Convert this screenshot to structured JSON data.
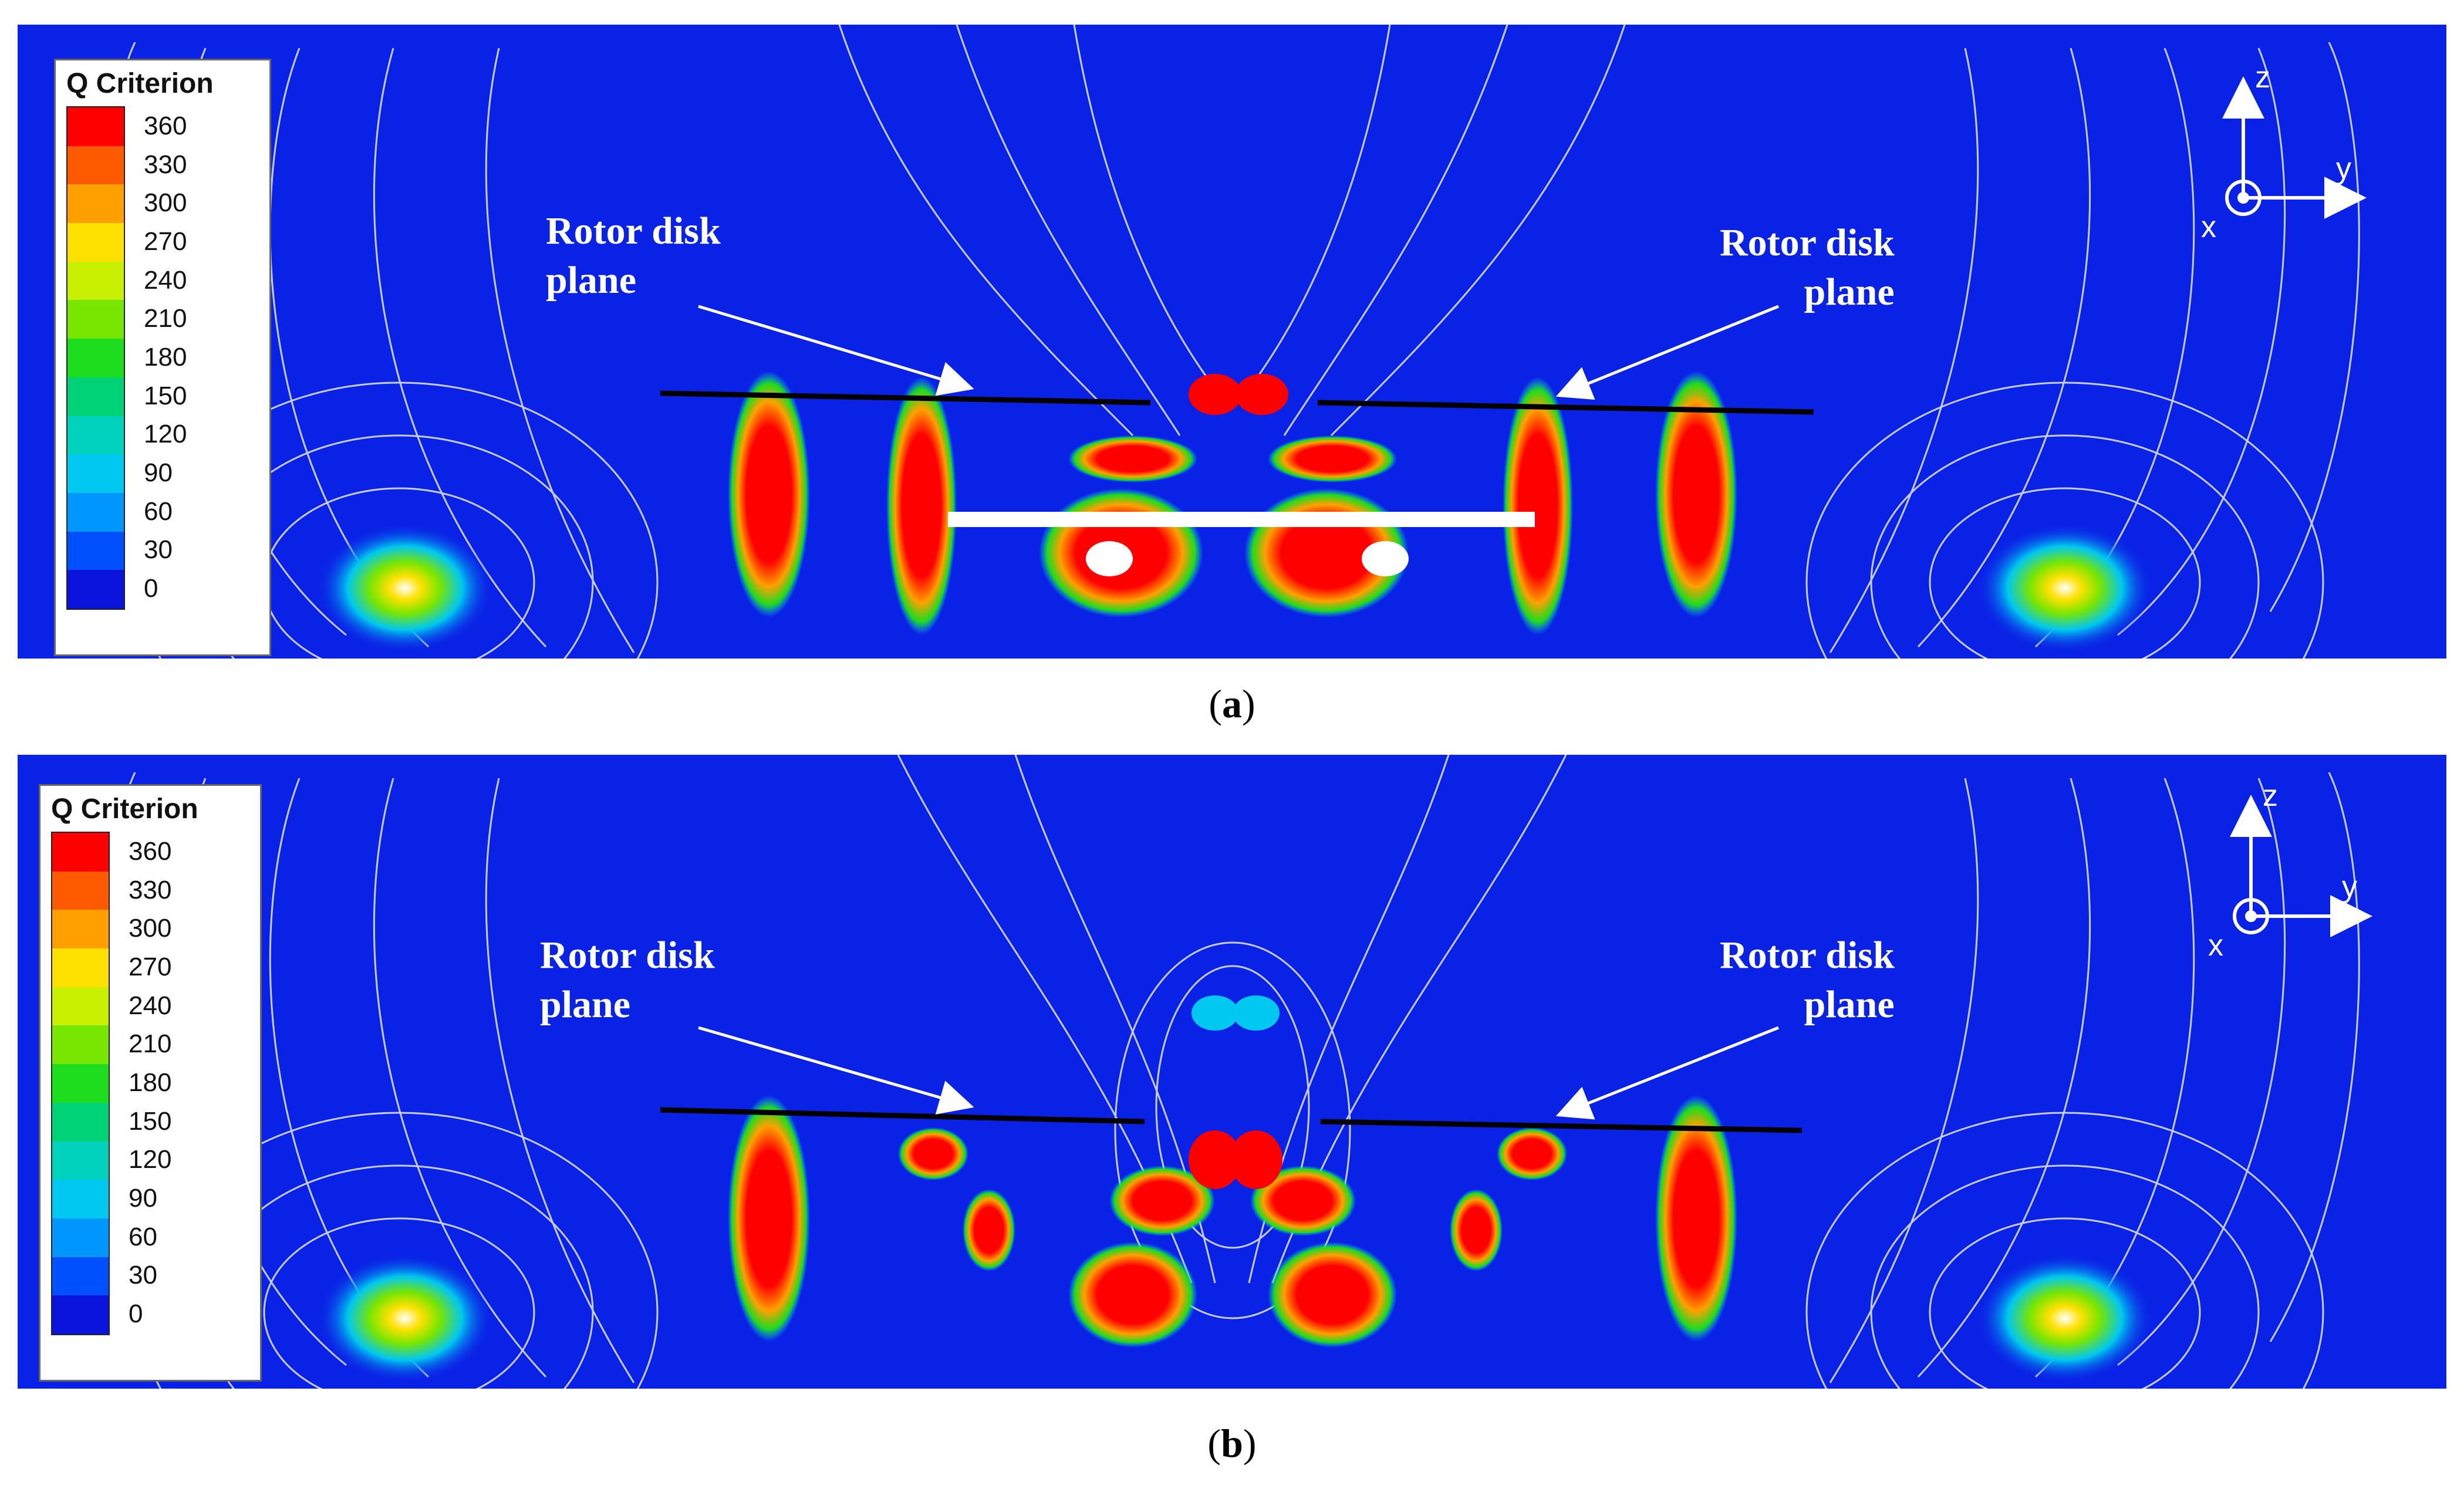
{
  "figure": {
    "panels": [
      {
        "id": "a",
        "caption_letter": "a",
        "legend": {
          "title": "Q Criterion",
          "levels": [
            {
              "label": "360",
              "color": "#ff0000"
            },
            {
              "label": "330",
              "color": "#ff5a00"
            },
            {
              "label": "300",
              "color": "#ffa000"
            },
            {
              "label": "270",
              "color": "#ffe100"
            },
            {
              "label": "240",
              "color": "#c8f000"
            },
            {
              "label": "210",
              "color": "#78e600"
            },
            {
              "label": "180",
              "color": "#1edc1e"
            },
            {
              "label": "150",
              "color": "#00d278"
            },
            {
              "label": "120",
              "color": "#00d2be"
            },
            {
              "label": "90",
              "color": "#00c8f0"
            },
            {
              "label": "60",
              "color": "#0096ff"
            },
            {
              "label": "30",
              "color": "#0050ff"
            },
            {
              "label": "0",
              "color": "#0a14dc"
            }
          ]
        },
        "annotation_left": {
          "line1": "Rotor disk",
          "line2": "plane"
        },
        "annotation_right": {
          "line1": "Rotor disk",
          "line2": "plane"
        },
        "axes": {
          "z": "z",
          "y": "y",
          "x": "x"
        }
      },
      {
        "id": "b",
        "caption_letter": "b",
        "legend": {
          "title": "Q Criterion",
          "levels": [
            {
              "label": "360",
              "color": "#ff0000"
            },
            {
              "label": "330",
              "color": "#ff5a00"
            },
            {
              "label": "300",
              "color": "#ffa000"
            },
            {
              "label": "270",
              "color": "#ffe100"
            },
            {
              "label": "240",
              "color": "#c8f000"
            },
            {
              "label": "210",
              "color": "#78e600"
            },
            {
              "label": "180",
              "color": "#1edc1e"
            },
            {
              "label": "150",
              "color": "#00d278"
            },
            {
              "label": "120",
              "color": "#00d2be"
            },
            {
              "label": "90",
              "color": "#00c8f0"
            },
            {
              "label": "60",
              "color": "#0096ff"
            },
            {
              "label": "30",
              "color": "#0050ff"
            },
            {
              "label": "0",
              "color": "#0a14dc"
            }
          ]
        },
        "annotation_left": {
          "line1": "Rotor disk",
          "line2": "plane"
        },
        "annotation_right": {
          "line1": "Rotor disk",
          "line2": "plane"
        },
        "axes": {
          "z": "z",
          "y": "y",
          "x": "x"
        }
      }
    ],
    "colors": {
      "background_field": "#0a22e6",
      "streamline": "#e8ecff",
      "vortex_core": "#ff0000"
    }
  }
}
